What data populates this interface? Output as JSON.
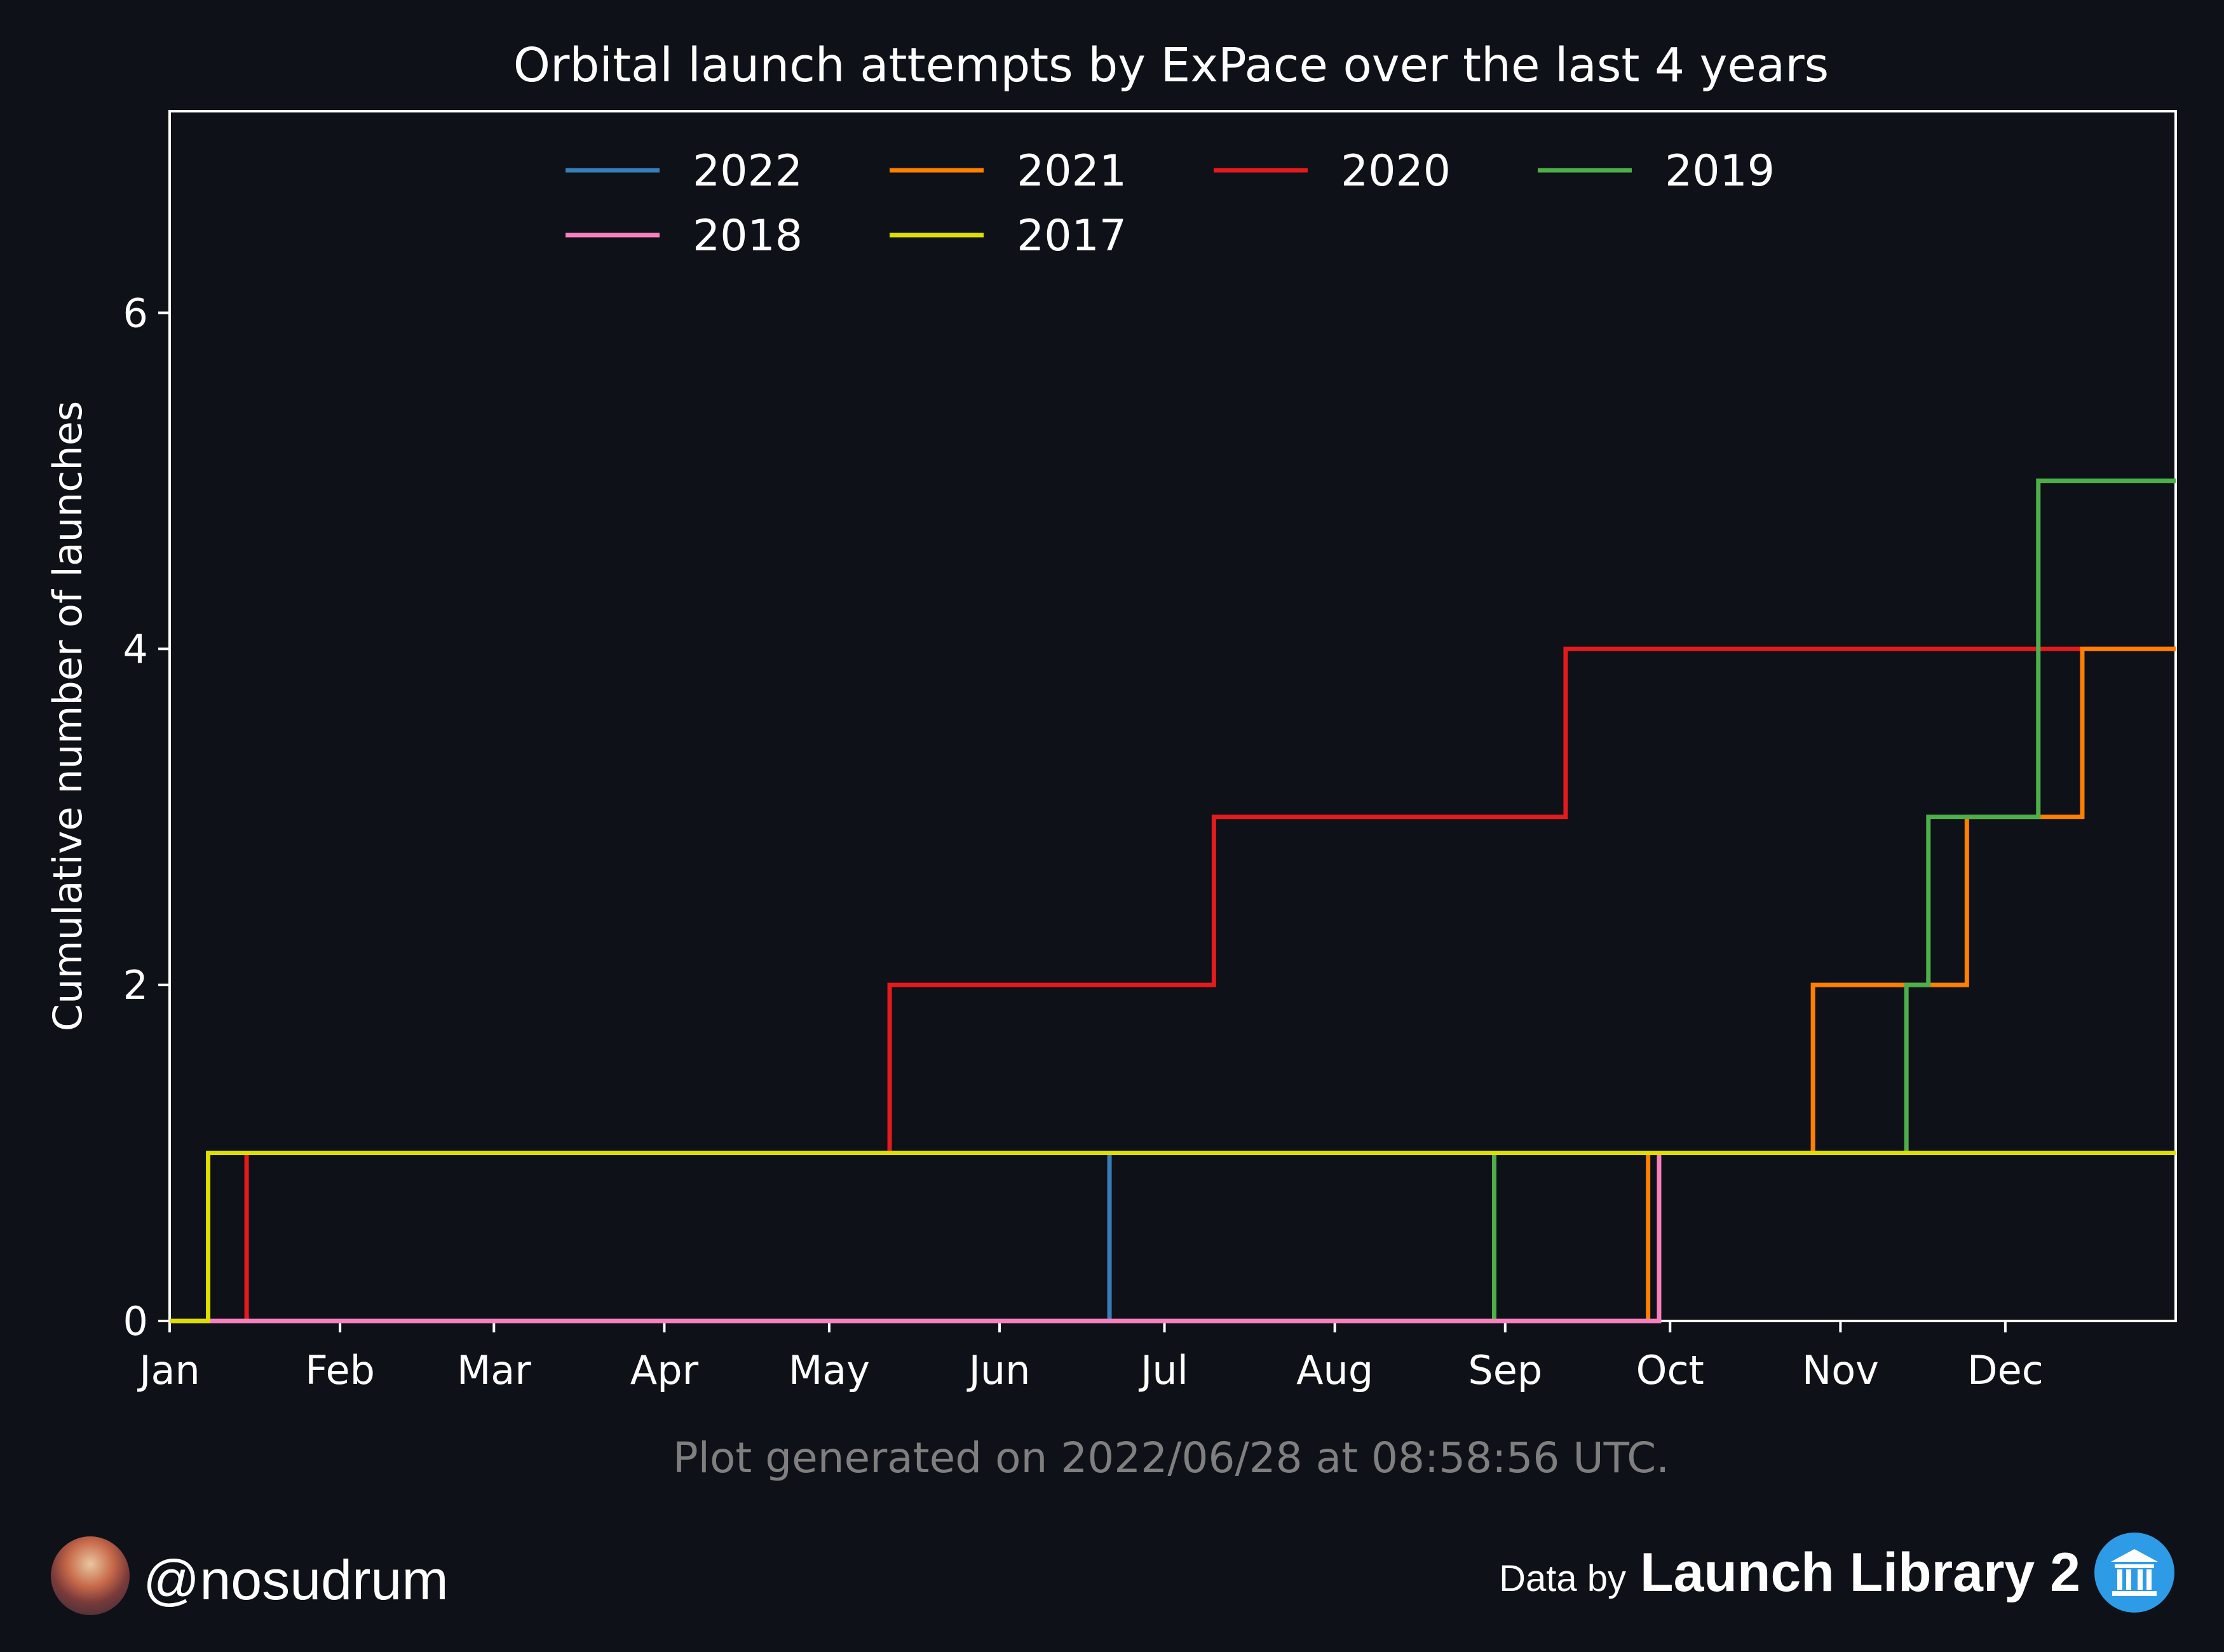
{
  "chart_data": {
    "type": "line",
    "step": "post",
    "title": "Orbital launch attempts by ExPace over the last 4 years",
    "ylabel": "Cumulative number of launches",
    "xlabel": "",
    "xlim": [
      0,
      365
    ],
    "ylim": [
      0,
      7.2
    ],
    "x_ticks": [
      {
        "label": "Jan",
        "day": 0
      },
      {
        "label": "Feb",
        "day": 31
      },
      {
        "label": "Mar",
        "day": 59
      },
      {
        "label": "Apr",
        "day": 90
      },
      {
        "label": "May",
        "day": 120
      },
      {
        "label": "Jun",
        "day": 151
      },
      {
        "label": "Jul",
        "day": 181
      },
      {
        "label": "Aug",
        "day": 212
      },
      {
        "label": "Sep",
        "day": 243
      },
      {
        "label": "Oct",
        "day": 273
      },
      {
        "label": "Nov",
        "day": 304
      },
      {
        "label": "Dec",
        "day": 334
      }
    ],
    "y_ticks": [
      0,
      2,
      4,
      6
    ],
    "legend_position": "top-center",
    "series": [
      {
        "name": "2022",
        "color": "#377eb8",
        "x": [
          0,
          171,
          178
        ],
        "y": [
          0,
          1,
          1
        ]
      },
      {
        "name": "2021",
        "color": "#ff7f00",
        "x": [
          0,
          269,
          299,
          327,
          348,
          365
        ],
        "y": [
          0,
          1,
          2,
          3,
          4,
          4
        ]
      },
      {
        "name": "2020",
        "color": "#e41a1c",
        "x": [
          0,
          14,
          131,
          190,
          254,
          365
        ],
        "y": [
          0,
          1,
          2,
          3,
          4,
          4
        ]
      },
      {
        "name": "2019",
        "color": "#4daf4a",
        "x": [
          0,
          241,
          316,
          320,
          340,
          365
        ],
        "y": [
          0,
          1,
          2,
          3,
          5,
          5
        ]
      },
      {
        "name": "2018",
        "color": "#f781bf",
        "x": [
          0,
          271,
          365
        ],
        "y": [
          0,
          1,
          1
        ]
      },
      {
        "name": "2017",
        "color": "#dede00",
        "x": [
          0,
          7,
          365
        ],
        "y": [
          0,
          1,
          1
        ]
      }
    ]
  },
  "footer": {
    "generated_note": "Plot generated on 2022/06/28 at 08:58:56 UTC.",
    "author_handle": "@nosudrum",
    "credit_prefix": "Data by",
    "credit_brand": "Launch Library 2"
  },
  "icons": {
    "avatar": "astronaut-avatar",
    "logo": "launch-library-logo-icon"
  }
}
